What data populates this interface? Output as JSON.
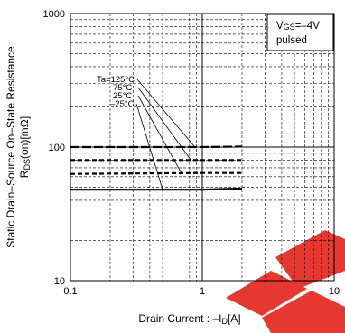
{
  "chart_data": {
    "type": "line",
    "title": "",
    "xlabel": "Drain Current : –I",
    "xlabel_sub": "D",
    "xlabel_unit": "[A]",
    "ylabel_line1": "Static Drain–Source On–State Resistance",
    "ylabel_line2_prefix": "R",
    "ylabel_line2_sub": "DS",
    "ylabel_line2_suffix": "(on)[mΩ]",
    "x_scale": "log",
    "y_scale": "log",
    "xlim": [
      0.1,
      10
    ],
    "ylim": [
      10,
      1000
    ],
    "x_ticks": [
      {
        "value": 0.1,
        "label": "0.1"
      },
      {
        "value": 1,
        "label": "1"
      },
      {
        "value": 10,
        "label": "10"
      }
    ],
    "y_ticks": [
      {
        "value": 10,
        "label": "10"
      },
      {
        "value": 100,
        "label": "100"
      },
      {
        "value": 1000,
        "label": "1000"
      }
    ],
    "grid": true,
    "conditions": {
      "line1": "V",
      "line1_sub": "GS",
      "line1_rest": "=–4V",
      "line2": "pulsed"
    },
    "series_prefix": "Ta=",
    "series": [
      {
        "name": "125°C",
        "x": [
          0.1,
          1,
          2
        ],
        "y": [
          100,
          100,
          101
        ],
        "style": "long-dash"
      },
      {
        "name": "75°C",
        "x": [
          0.1,
          1,
          2
        ],
        "y": [
          80,
          80,
          80
        ],
        "style": "dash"
      },
      {
        "name": "25°C",
        "x": [
          0.1,
          1,
          2
        ],
        "y": [
          63,
          64,
          64
        ],
        "style": "dash"
      },
      {
        "name": "–25°C",
        "x": [
          0.1,
          1,
          2
        ],
        "y": [
          48,
          48,
          49
        ],
        "style": "solid"
      }
    ]
  }
}
